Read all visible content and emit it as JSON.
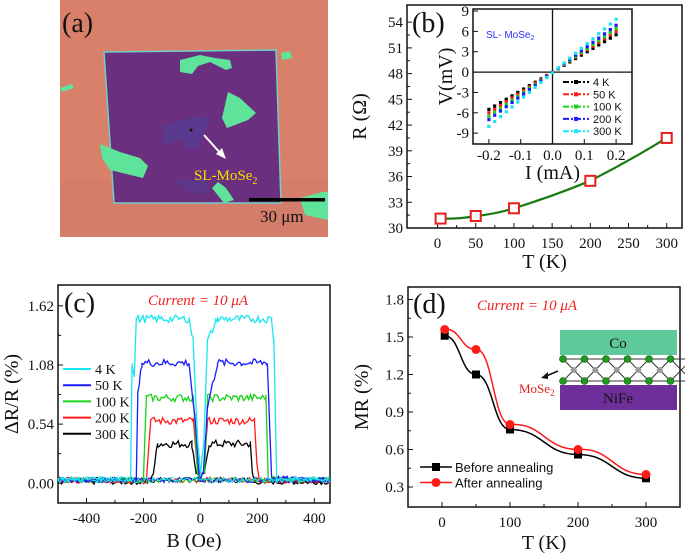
{
  "panel_a": {
    "label": "(a)",
    "annotation": "SL-MoSe",
    "annotation_sub": "2",
    "scale_bar": "30 μm",
    "colors": {
      "substrate": "#d8806a",
      "square": "#6a2f7e",
      "flakes": "#5fe39a",
      "annotation": "#f5e000"
    }
  },
  "chart_data": [
    {
      "id": "b",
      "type": "line",
      "panel_label": "(b)",
      "xlabel": "T (K)",
      "ylabel": "R (Ω)",
      "xlim": [
        -40,
        320
      ],
      "ylim": [
        30,
        56
      ],
      "xticks": [
        0,
        50,
        100,
        150,
        200,
        250,
        300
      ],
      "yticks": [
        30,
        33,
        36,
        39,
        42,
        45,
        48,
        51,
        54
      ],
      "grid": false,
      "series": [
        {
          "x": [
            4,
            50,
            100,
            200,
            300
          ],
          "y": [
            31.1,
            31.4,
            32.3,
            35.5,
            40.5
          ],
          "marker": "open-square",
          "marker_color": "#e8201c",
          "line_color": "#1a7a12"
        }
      ],
      "inset": {
        "type": "line",
        "title": "SL- MoSe",
        "title_sub": "2",
        "xlabel": "I (mA)",
        "ylabel": "V(mV)",
        "xlim": [
          -0.25,
          0.25
        ],
        "ylim": [
          -10.6,
          9.3
        ],
        "xticks": [
          "-0.2",
          "-0.1",
          "0.0",
          "0.1",
          "0.2"
        ],
        "yticks": [
          "-9",
          "-6",
          "-3",
          "0",
          "3",
          "6",
          "9"
        ],
        "legend_placement": "bottom-right",
        "series": [
          {
            "name": "4 K",
            "color": "#000000",
            "x": [
              -0.2,
              0.2
            ],
            "y": [
              -5.5,
              5.5
            ]
          },
          {
            "name": "50 K",
            "color": "#ff1a1a",
            "x": [
              -0.2,
              0.2
            ],
            "y": [
              -6.0,
              6.0
            ]
          },
          {
            "name": "100 K",
            "color": "#19d219",
            "x": [
              -0.2,
              0.2
            ],
            "y": [
              -6.5,
              6.4
            ]
          },
          {
            "name": "200 K",
            "color": "#1a1aff",
            "x": [
              -0.2,
              0.2
            ],
            "y": [
              -7.0,
              6.9
            ]
          },
          {
            "name": "300 K",
            "color": "#19e6f0",
            "x": [
              -0.2,
              0.2
            ],
            "y": [
              -8.0,
              7.8
            ]
          }
        ]
      }
    },
    {
      "id": "c",
      "type": "line",
      "panel_label": "(c)",
      "annotation": "Current = 10 μA",
      "xlabel": "B (Oe)",
      "ylabel": "ΔR/R (%)",
      "xlim": [
        -500,
        455
      ],
      "ylim": [
        -0.18,
        1.81
      ],
      "xticks": [
        "-400",
        "-200",
        "0",
        "200",
        "400"
      ],
      "yticks": [
        "0.00",
        "0.54",
        "1.08",
        "1.62"
      ],
      "legend_placement": "left",
      "grid": false,
      "series": [
        {
          "name": "300 K",
          "color": "#000000",
          "points": [
            [
              -500,
              0.01
            ],
            [
              -175,
              0.01
            ],
            [
              -165,
              0.1
            ],
            [
              -150,
              0.36
            ],
            [
              -30,
              0.36
            ],
            [
              -15,
              0.1
            ],
            [
              0,
              0.05
            ],
            [
              15,
              0.1
            ],
            [
              30,
              0.36
            ],
            [
              175,
              0.36
            ],
            [
              182,
              0.1
            ],
            [
              190,
              0.01
            ],
            [
              455,
              0.01
            ]
          ]
        },
        {
          "name": "200 K",
          "color": "#ff1a1a",
          "points": [
            [
              -500,
              0.02
            ],
            [
              -190,
              0.02
            ],
            [
              -185,
              0.2
            ],
            [
              -175,
              0.57
            ],
            [
              -25,
              0.57
            ],
            [
              -10,
              0.1
            ],
            [
              0,
              0.05
            ],
            [
              12,
              0.1
            ],
            [
              25,
              0.57
            ],
            [
              190,
              0.57
            ],
            [
              198,
              0.2
            ],
            [
              208,
              0.02
            ],
            [
              455,
              0.02
            ]
          ]
        },
        {
          "name": "100 K",
          "color": "#19d219",
          "points": [
            [
              -500,
              0.03
            ],
            [
              -200,
              0.03
            ],
            [
              -190,
              0.78
            ],
            [
              -25,
              0.78
            ],
            [
              -10,
              0.1
            ],
            [
              0,
              0.05
            ],
            [
              15,
              0.1
            ],
            [
              25,
              0.78
            ],
            [
              230,
              0.78
            ],
            [
              238,
              0.05
            ],
            [
              455,
              0.03
            ]
          ]
        },
        {
          "name": "50 K",
          "color": "#1a1aff",
          "points": [
            [
              -500,
              0.03
            ],
            [
              -225,
              0.03
            ],
            [
              -220,
              0.8
            ],
            [
              -205,
              1.1
            ],
            [
              -40,
              1.1
            ],
            [
              -20,
              0.6
            ],
            [
              -5,
              0.1
            ],
            [
              0,
              0.05
            ],
            [
              10,
              0.1
            ],
            [
              25,
              0.7
            ],
            [
              60,
              1.1
            ],
            [
              235,
              1.1
            ],
            [
              250,
              0.05
            ],
            [
              455,
              0.03
            ]
          ]
        },
        {
          "name": "4 K",
          "color": "#19e6f0",
          "points": [
            [
              -500,
              0.04
            ],
            [
              -245,
              0.04
            ],
            [
              -240,
              1.1
            ],
            [
              -232,
              1.0
            ],
            [
              -225,
              1.5
            ],
            [
              -40,
              1.5
            ],
            [
              -25,
              1.3
            ],
            [
              -10,
              0.4
            ],
            [
              0,
              0.08
            ],
            [
              12,
              0.4
            ],
            [
              25,
              1.3
            ],
            [
              60,
              1.5
            ],
            [
              250,
              1.5
            ],
            [
              258,
              1.3
            ],
            [
              268,
              0.04
            ],
            [
              455,
              0.04
            ]
          ]
        }
      ]
    },
    {
      "id": "d",
      "type": "line",
      "panel_label": "(d)",
      "annotation": "Current = 10 μA",
      "xlabel": "T (K)",
      "ylabel": "MR (%)",
      "xlim": [
        -50,
        350
      ],
      "ylim": [
        0.14,
        1.9
      ],
      "xticks": [
        0,
        100,
        200,
        300
      ],
      "yticks": [
        "0.3",
        "0.6",
        "0.9",
        "1.2",
        "1.5",
        "1.8"
      ],
      "legend_placement": "bottom-left",
      "grid": false,
      "series": [
        {
          "name": "Before annealing",
          "color": "#000000",
          "marker": "square",
          "x": [
            4,
            50,
            100,
            200,
            300
          ],
          "y": [
            1.51,
            1.2,
            0.76,
            0.56,
            0.37
          ]
        },
        {
          "name": "After annealing",
          "color": "#ff1a1a",
          "marker": "circle",
          "x": [
            4,
            50,
            100,
            200,
            300
          ],
          "y": [
            1.56,
            1.4,
            0.8,
            0.6,
            0.4
          ]
        }
      ],
      "inset_diagram": {
        "top_layer": "Co",
        "middle_layer": "MoSe",
        "middle_sub": "2",
        "bottom_layer": "NiFe",
        "colors": {
          "Co": "#5ec99a",
          "NiFe": "#6e2f9a",
          "Se": "#1f9a1f",
          "Mo": "#9a9a9a"
        }
      }
    }
  ]
}
